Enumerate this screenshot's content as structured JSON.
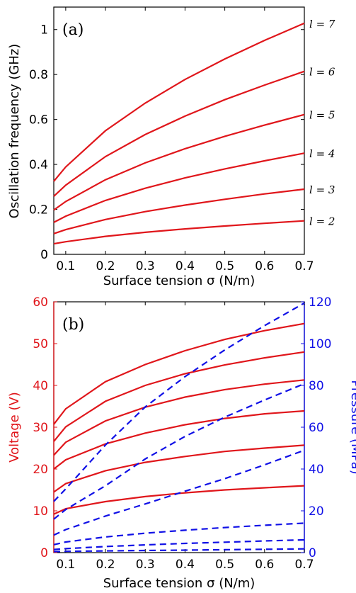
{
  "colors": {
    "solid": "#e0161b",
    "dashed": "#1010e6",
    "axis": "#000000",
    "left_axis_b": "#e0161b",
    "right_axis_b": "#1010e6"
  },
  "chart_data": [
    {
      "type": "line",
      "panel_label": "(a)",
      "xlabel": "Surface tension σ (N/m)",
      "ylabel": "Oscillation frequency (GHz)",
      "xlim": [
        0.07,
        0.7
      ],
      "ylim": [
        0,
        1.1
      ],
      "xticks": [
        "0.1",
        "0.2",
        "0.3",
        "0.4",
        "0.5",
        "0.6",
        "0.7"
      ],
      "yticks": [
        "0",
        "0.2",
        "0.4",
        "0.6",
        "0.8",
        "1"
      ],
      "x": [
        0.07,
        0.1,
        0.2,
        0.3,
        0.4,
        0.5,
        0.6,
        0.7
      ],
      "series": [
        {
          "name": "l = 2",
          "values": [
            0.047,
            0.056,
            0.08,
            0.098,
            0.113,
            0.126,
            0.138,
            0.149
          ]
        },
        {
          "name": "l = 3",
          "values": [
            0.092,
            0.11,
            0.155,
            0.19,
            0.219,
            0.245,
            0.269,
            0.29
          ]
        },
        {
          "name": "l = 4",
          "values": [
            0.142,
            0.17,
            0.24,
            0.294,
            0.34,
            0.38,
            0.416,
            0.45
          ]
        },
        {
          "name": "l = 5",
          "values": [
            0.197,
            0.235,
            0.332,
            0.407,
            0.47,
            0.525,
            0.575,
            0.622
          ]
        },
        {
          "name": "l = 6",
          "values": [
            0.258,
            0.308,
            0.435,
            0.533,
            0.615,
            0.688,
            0.753,
            0.814
          ]
        },
        {
          "name": "l = 7",
          "values": [
            0.325,
            0.389,
            0.55,
            0.673,
            0.778,
            0.869,
            0.952,
            1.028
          ]
        }
      ]
    },
    {
      "type": "line",
      "panel_label": "(b)",
      "xlabel": "Surface tension σ (N/m)",
      "ylabel": "Voltage (V)",
      "y2label": "Pressure (MPa)",
      "xlim": [
        0.07,
        0.7
      ],
      "ylim": [
        0,
        60
      ],
      "y2lim": [
        0,
        120
      ],
      "xticks": [
        "0.1",
        "0.2",
        "0.3",
        "0.4",
        "0.5",
        "0.6",
        "0.7"
      ],
      "yticks": [
        "0",
        "10",
        "20",
        "30",
        "40",
        "50",
        "60"
      ],
      "y2ticks": [
        "0",
        "20",
        "40",
        "60",
        "80",
        "100",
        "120"
      ],
      "x": [
        0.07,
        0.1,
        0.2,
        0.3,
        0.4,
        0.5,
        0.6,
        0.7
      ],
      "voltage_series": [
        {
          "values": [
            9.2,
            10.5,
            12.2,
            13.4,
            14.3,
            15.0,
            15.5,
            16.0
          ]
        },
        {
          "values": [
            14.5,
            16.5,
            19.6,
            21.6,
            23.0,
            24.2,
            25.0,
            25.7
          ]
        },
        {
          "values": [
            20.0,
            22.2,
            26.0,
            28.6,
            30.6,
            32.1,
            33.2,
            33.9
          ]
        },
        {
          "values": [
            23.3,
            26.4,
            31.5,
            34.8,
            37.2,
            39.0,
            40.3,
            41.3
          ]
        },
        {
          "values": [
            26.6,
            30.1,
            36.2,
            40.0,
            42.8,
            44.9,
            46.6,
            48.0
          ]
        },
        {
          "values": [
            30.7,
            34.4,
            40.9,
            45.0,
            48.3,
            51.0,
            53.1,
            54.8
          ]
        }
      ],
      "pressure_series": [
        {
          "values": [
            0.5,
            0.6,
            0.8,
            1.0,
            1.2,
            1.4,
            1.6,
            1.8
          ]
        },
        {
          "values": [
            1.5,
            1.9,
            2.9,
            3.7,
            4.4,
            5.0,
            5.6,
            6.1
          ]
        },
        {
          "values": [
            3.8,
            5.1,
            7.5,
            9.3,
            10.7,
            12.0,
            13.1,
            14.1
          ]
        },
        {
          "values": [
            8.4,
            11.0,
            17.5,
            23.3,
            29.4,
            35.4,
            42.0,
            49.0
          ]
        },
        {
          "values": [
            16.0,
            20.6,
            32.0,
            44.8,
            55.6,
            64.8,
            73.0,
            80.8
          ]
        },
        {
          "values": [
            24.5,
            30.5,
            51.5,
            69.7,
            84.2,
            97.0,
            108.6,
            119.4
          ]
        }
      ]
    }
  ],
  "panel_a_right_labels": [
    "l = 7",
    "l = 6",
    "l = 5",
    "l = 4",
    "l = 3",
    "l = 2"
  ]
}
